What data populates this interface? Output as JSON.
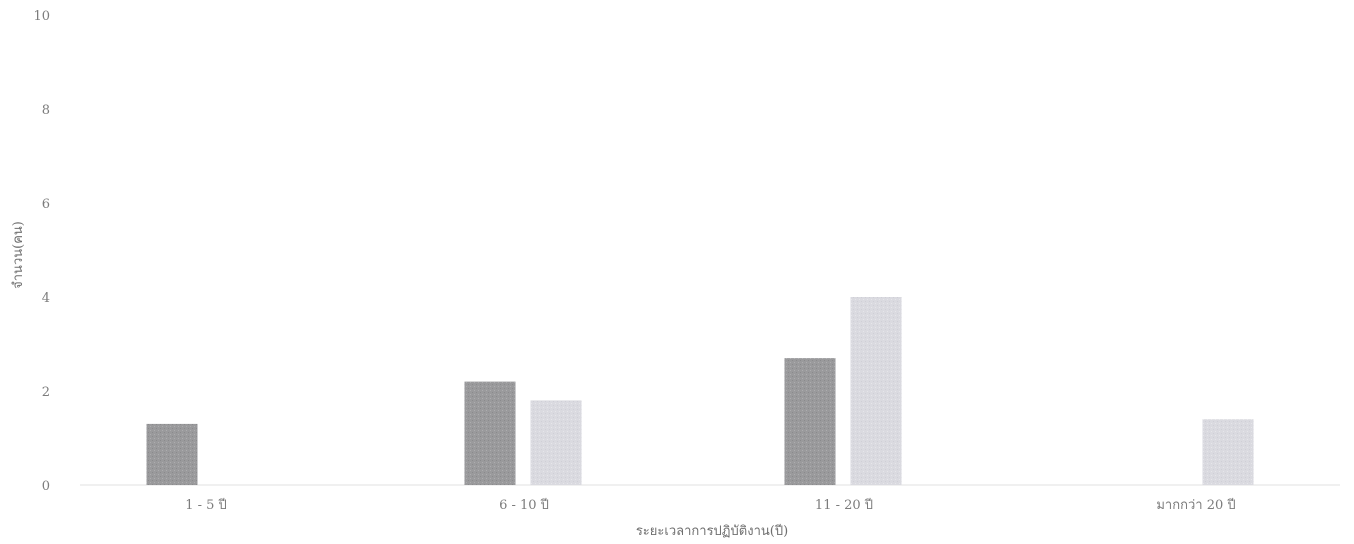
{
  "chart_data": {
    "type": "bar",
    "title": "",
    "xlabel": "ระยะเวลาการปฏิบัติงาน(ปี)",
    "ylabel": "จำนวน(คน)",
    "categories": [
      "1 - 5 ปี",
      "6 - 10 ปี",
      "11 - 20 ปี",
      "มากกว่า 20 ปี"
    ],
    "series": [
      {
        "values": [
          1.3,
          2.2,
          2.7,
          0
        ],
        "color": "#9d9d9f"
      },
      {
        "values": [
          0,
          1.8,
          4.0,
          1.4
        ],
        "color": "#dcdce2"
      }
    ],
    "ylim": [
      0,
      10
    ],
    "yticks": [
      0,
      2,
      4,
      6,
      8,
      10
    ],
    "grid": false,
    "legend": "none"
  }
}
